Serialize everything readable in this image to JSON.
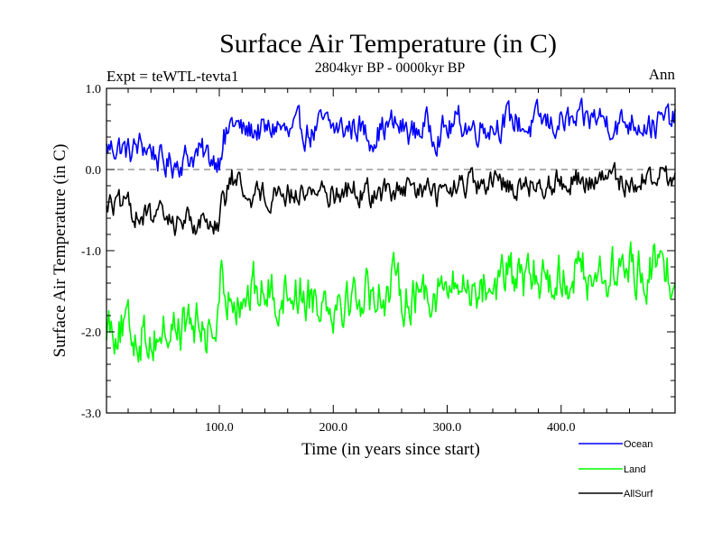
{
  "chart_data": {
    "type": "line",
    "title": "Surface Air Temperature (in C)",
    "subtitle": "2804kyr BP - 0000kyr BP",
    "left_label": "Expt = teWTL-tevta1",
    "right_label": "Ann",
    "xlabel": "Time (in years since start)",
    "ylabel": "Surface Air Temperature (in C)",
    "xlim": [
      1,
      500
    ],
    "ylim": [
      -3.0,
      1.0
    ],
    "x_ticks": [
      100,
      200,
      300,
      400
    ],
    "x_tick_labels": [
      "100.0",
      "200.0",
      "300.0",
      "400.0"
    ],
    "y_ticks": [
      1.0,
      0.0,
      -1.0,
      -2.0,
      -3.0
    ],
    "y_tick_labels": [
      "1.0",
      "0.0",
      "-1.0",
      "-2.0",
      "-3.0"
    ],
    "reference_line": 0.0,
    "legend_position": "bottom-right, outside plot",
    "series": [
      {
        "name": "Ocean",
        "color": "#0000ff",
        "x_step": 10,
        "values": [
          0.25,
          0.3,
          0.2,
          0.3,
          0.25,
          0.05,
          0.1,
          0.15,
          0.2,
          0.15,
          0.15,
          0.6,
          0.45,
          0.5,
          0.45,
          0.55,
          0.4,
          0.5,
          0.45,
          0.55,
          0.5,
          0.5,
          0.55,
          0.4,
          0.5,
          0.55,
          0.5,
          0.45,
          0.55,
          0.45,
          0.5,
          0.6,
          0.5,
          0.55,
          0.55,
          0.6,
          0.6,
          0.5,
          0.6,
          0.55,
          0.6,
          0.55,
          0.6,
          0.65,
          0.6,
          0.55,
          0.6,
          0.6,
          0.55,
          0.6,
          0.6
        ]
      },
      {
        "name": "Land",
        "color": "#00ff00",
        "x_step": 10,
        "values": [
          -1.85,
          -1.9,
          -2.05,
          -2.0,
          -2.05,
          -2.0,
          -1.95,
          -1.9,
          -1.95,
          -2.0,
          -1.9,
          -1.45,
          -1.55,
          -1.5,
          -1.5,
          -1.55,
          -1.45,
          -1.5,
          -1.55,
          -1.55,
          -1.6,
          -1.55,
          -1.55,
          -1.5,
          -1.5,
          -1.45,
          -1.5,
          -1.55,
          -1.45,
          -1.45,
          -1.5,
          -1.45,
          -1.4,
          -1.45,
          -1.4,
          -1.3,
          -1.35,
          -1.4,
          -1.3,
          -1.3,
          -1.35,
          -1.2,
          -1.3,
          -1.25,
          -1.3,
          -1.25,
          -1.2,
          -1.25,
          -1.2,
          -1.25,
          -1.2
        ]
      },
      {
        "name": "AllSurf",
        "color": "#000000",
        "x_step": 10,
        "values": [
          -0.4,
          -0.45,
          -0.5,
          -0.55,
          -0.6,
          -0.6,
          -0.65,
          -0.6,
          -0.65,
          -0.65,
          -0.6,
          -0.1,
          -0.25,
          -0.3,
          -0.3,
          -0.25,
          -0.3,
          -0.3,
          -0.25,
          -0.25,
          -0.3,
          -0.25,
          -0.25,
          -0.3,
          -0.3,
          -0.25,
          -0.3,
          -0.25,
          -0.25,
          -0.3,
          -0.3,
          -0.2,
          -0.2,
          -0.25,
          -0.2,
          -0.15,
          -0.2,
          -0.2,
          -0.15,
          -0.15,
          -0.15,
          -0.1,
          -0.15,
          -0.15,
          -0.1,
          -0.15,
          -0.15,
          -0.1,
          -0.1,
          -0.1,
          -0.1
        ]
      }
    ]
  }
}
